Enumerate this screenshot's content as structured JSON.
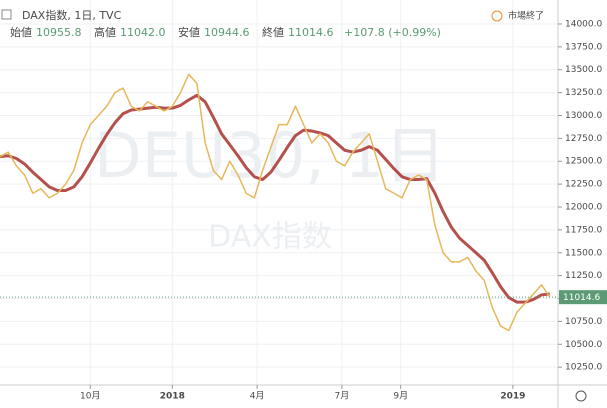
{
  "header": {
    "symbol": "DAX指数, 1日, TVC",
    "open_label": "始値",
    "open": "10955.8",
    "high_label": "高値",
    "high": "11042.0",
    "low_label": "安値",
    "low": "10944.6",
    "close_label": "終値",
    "close": "11014.6",
    "change": "+107.8 (+0.99%)",
    "status": "市場終了"
  },
  "watermark": {
    "line1": "DEU30, 1日",
    "line2": "DAX指数"
  },
  "chart_data": {
    "type": "line",
    "x": [
      0,
      6,
      12,
      18,
      24,
      30,
      36,
      42,
      48,
      54,
      60,
      66,
      72,
      78,
      84,
      90,
      96,
      102,
      108,
      114,
      120,
      126,
      132,
      138,
      144,
      150,
      156,
      162,
      168,
      174,
      180,
      186,
      192,
      198,
      204,
      210,
      216,
      222,
      228,
      234,
      240,
      246,
      252,
      258,
      264,
      270,
      276,
      282,
      288,
      294,
      300,
      306,
      312,
      318,
      324,
      330,
      336,
      342,
      348,
      354,
      360,
      366,
      372,
      378,
      384,
      390,
      396,
      402
    ],
    "series": [
      {
        "color": "#e7b75a",
        "values": [
          12550,
          12600,
          12450,
          12350,
          12150,
          12200,
          12100,
          12150,
          12250,
          12400,
          12700,
          12900,
          13000,
          13100,
          13250,
          13300,
          13100,
          13050,
          13150,
          13100,
          13050,
          13100,
          13250,
          13450,
          13350,
          12700,
          12400,
          12300,
          12500,
          12350,
          12150,
          12100,
          12400,
          12650,
          12900,
          12900,
          13100,
          12900,
          12700,
          12800,
          12700,
          12500,
          12450,
          12600,
          12700,
          12800,
          12500,
          12200,
          12150,
          12100,
          12300,
          12350,
          12300,
          11800,
          11500,
          11400,
          11400,
          11450,
          11300,
          11200,
          10900,
          10700,
          10650,
          10850,
          10950,
          11050,
          11150,
          11014.6
        ]
      },
      {
        "color": "#a8322d",
        "values": [
          12550,
          12560,
          12530,
          12470,
          12380,
          12300,
          12220,
          12180,
          12180,
          12220,
          12330,
          12480,
          12640,
          12790,
          12920,
          13020,
          13060,
          13070,
          13080,
          13090,
          13080,
          13080,
          13110,
          13170,
          13220,
          13150,
          12980,
          12800,
          12680,
          12560,
          12430,
          12330,
          12300,
          12380,
          12510,
          12650,
          12780,
          12840,
          12830,
          12810,
          12780,
          12700,
          12620,
          12600,
          12620,
          12660,
          12620,
          12520,
          12420,
          12330,
          12300,
          12300,
          12310,
          12150,
          11950,
          11780,
          11660,
          11580,
          11500,
          11420,
          11280,
          11130,
          11010,
          10960,
          10960,
          10990,
          11040,
          11050
        ]
      }
    ],
    "xlim": [
      0,
      408
    ],
    "xticks": [
      {
        "value": 66,
        "label": "10月"
      },
      {
        "value": 126,
        "label": "2018"
      },
      {
        "value": 188,
        "label": "4月"
      },
      {
        "value": 250,
        "label": "7月"
      },
      {
        "value": 293,
        "label": "9月"
      },
      {
        "value": 375,
        "label": "2019"
      }
    ],
    "ylim": [
      10055,
      14262
    ],
    "yticks": [
      {
        "value": 10250,
        "label": "10250.0"
      },
      {
        "value": 10500,
        "label": "10500.0"
      },
      {
        "value": 10750,
        "label": "10750.0"
      },
      {
        "value": 11000,
        "label": "11000.0"
      },
      {
        "value": 11250,
        "label": "11250.0"
      },
      {
        "value": 11500,
        "label": "11500.0"
      },
      {
        "value": 11750,
        "label": "11750.0"
      },
      {
        "value": 12000,
        "label": "12000.0"
      },
      {
        "value": 12250,
        "label": "12250.0"
      },
      {
        "value": 12500,
        "label": "12500.0"
      },
      {
        "value": 12750,
        "label": "12750.0"
      },
      {
        "value": 13000,
        "label": "13000.0"
      },
      {
        "value": 13250,
        "label": "13250.0"
      },
      {
        "value": 13500,
        "label": "13500.0"
      },
      {
        "value": 13750,
        "label": "13750.0"
      },
      {
        "value": 14000,
        "label": "14000.0"
      }
    ],
    "last_price": {
      "value": 11014.6,
      "label": "11014.6",
      "color": "#5b9a74"
    },
    "grid": true
  }
}
